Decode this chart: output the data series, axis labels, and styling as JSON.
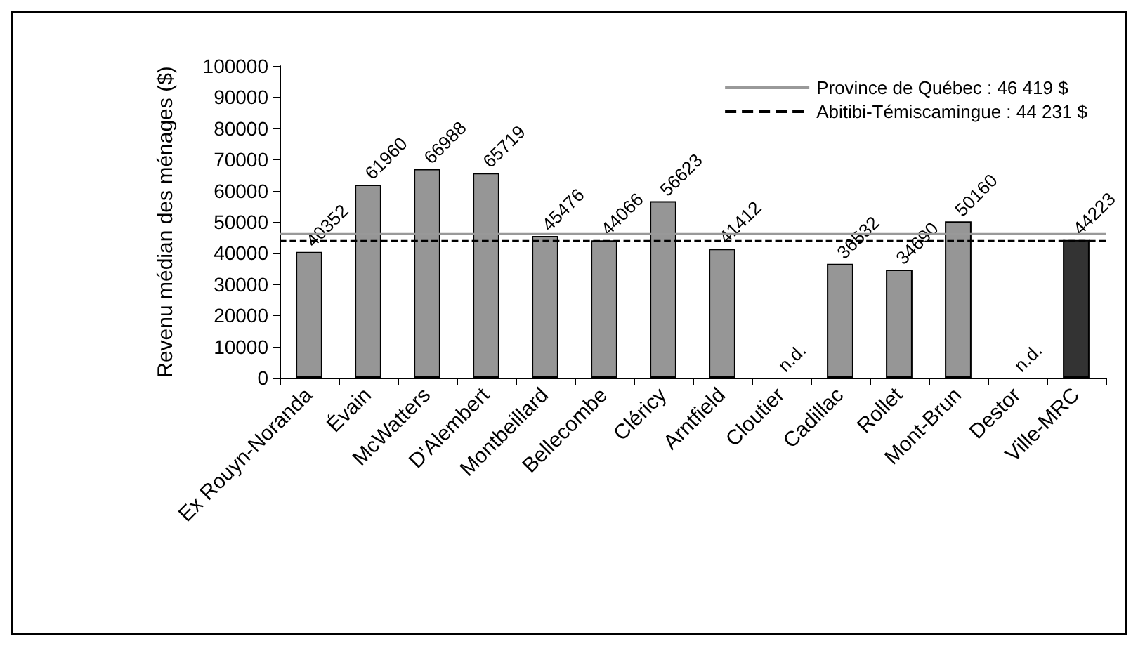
{
  "chart_data": {
    "type": "bar",
    "ylabel": "Revenu médian des ménages ($)",
    "categories": [
      "Ex Rouyn-Noranda",
      "Évain",
      "McWatters",
      "D'Alembert",
      "Montbeillard",
      "Bellecombe",
      "Cléricy",
      "Arntfield",
      "Cloutier",
      "Cadillac",
      "Rollet",
      "Mont-Brun",
      "Destor",
      "Ville-MRC"
    ],
    "values": [
      40352,
      61960,
      66988,
      65719,
      45476,
      44066,
      56623,
      41412,
      null,
      36532,
      34690,
      50160,
      null,
      44223
    ],
    "value_labels": [
      "40352",
      "61960",
      "66988",
      "65719",
      "45476",
      "44066",
      "56623",
      "41412",
      "n.d.",
      "36532",
      "34690",
      "50160",
      "n.d.",
      "44223"
    ],
    "colors": [
      "#969696",
      "#969696",
      "#969696",
      "#969696",
      "#969696",
      "#969696",
      "#969696",
      "#969696",
      "#969696",
      "#969696",
      "#969696",
      "#969696",
      "#969696",
      "#333333"
    ],
    "ylim": [
      0,
      100000
    ],
    "yticks": [
      0,
      10000,
      20000,
      30000,
      40000,
      50000,
      60000,
      70000,
      80000,
      90000,
      100000
    ],
    "ref_lines": [
      {
        "axis": "y",
        "value": 46419,
        "label": "Province de Québec : 46 419 $",
        "color": "#999999",
        "line_style": "solid"
      },
      {
        "axis": "y",
        "value": 44231,
        "label": "Abitibi-Témiscamingue : 44 231 $",
        "color": "#000000",
        "line_style": "dashed"
      }
    ],
    "legend": "top right",
    "grid": false
  }
}
